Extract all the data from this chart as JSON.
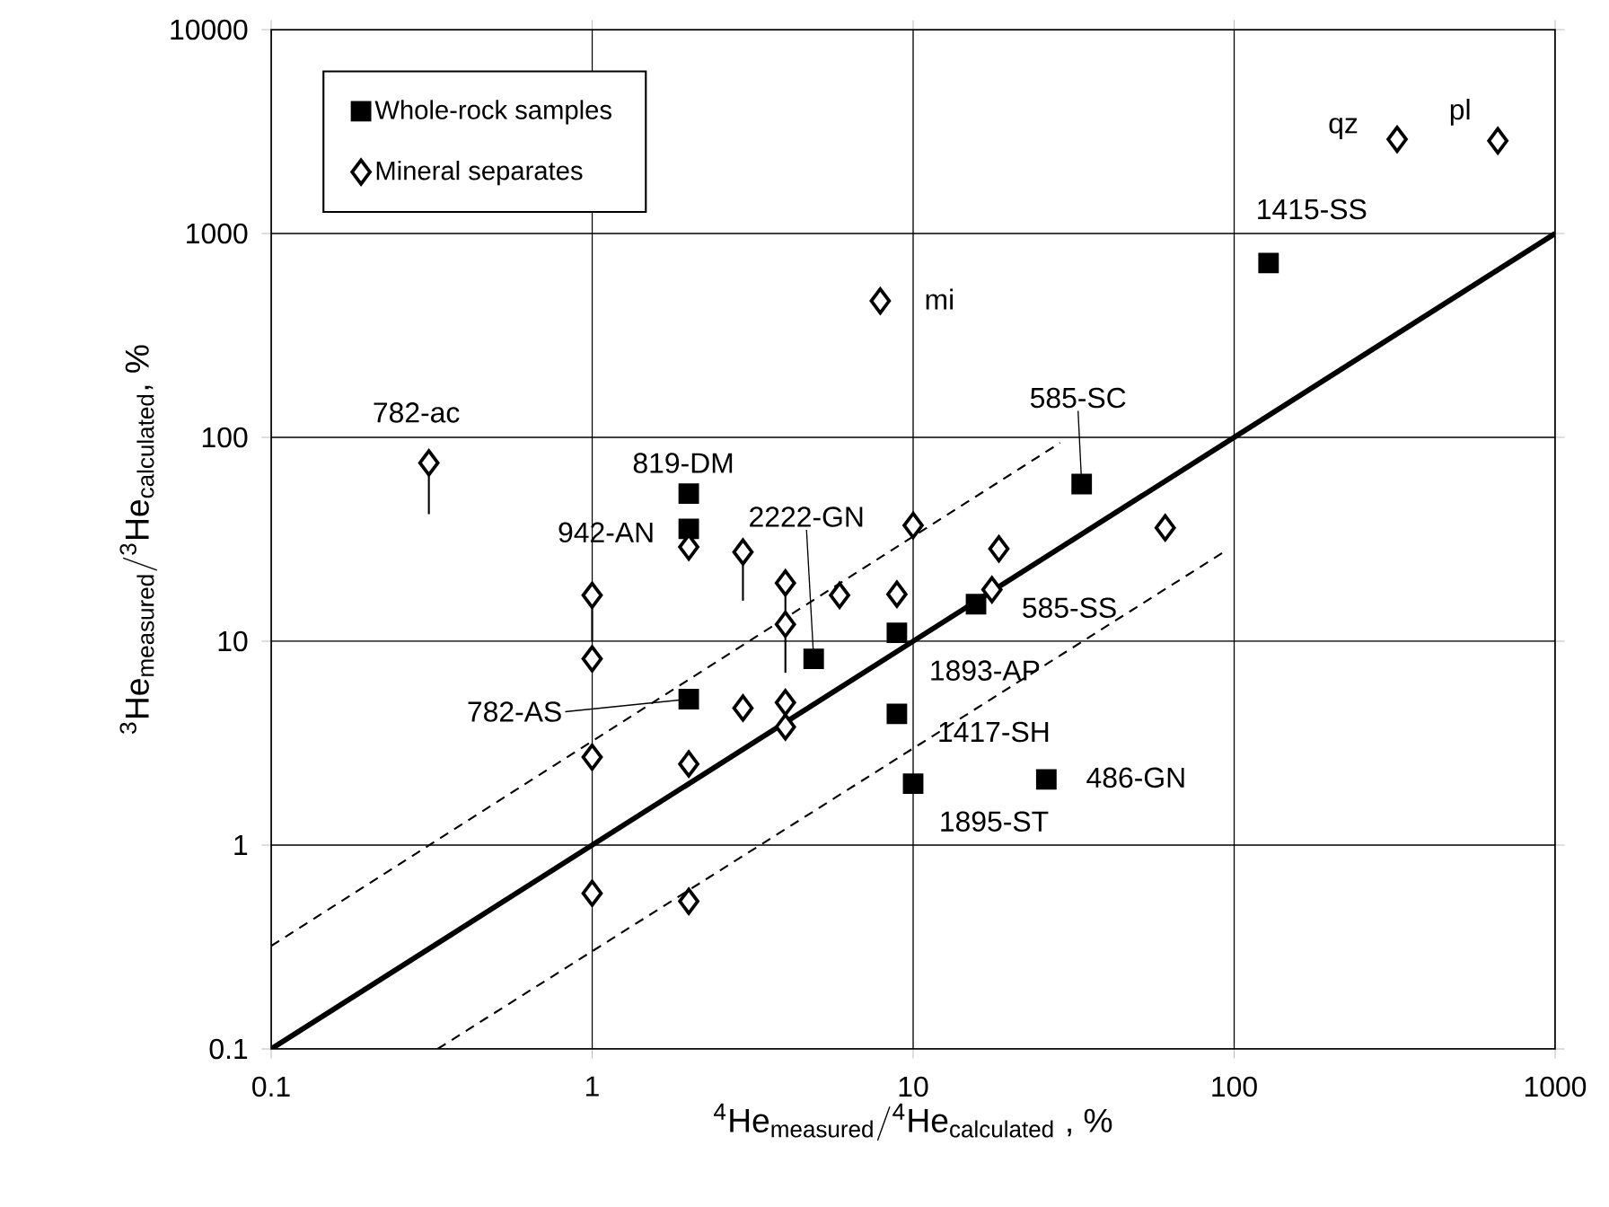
{
  "chart_data": {
    "type": "scatter",
    "xlabel": "{}^{\\text{4}}\\text{He}_{\\text{measured}}/{}^{\\text{4}}\\text{He}_{\\text{calculated}}\\text{ , \\%}",
    "ylabel": "{}^{\\text{3}}\\text{He}_{\\text{measured}}/{}^{\\text{3}}\\text{He}_{\\text{calculated}}\\text{, \\%}",
    "log": "xy",
    "grid": true,
    "legend": "top left",
    "xlim": [
      0.1,
      1000
    ],
    "ylim": [
      0.1,
      10000
    ],
    "xticks": [
      0.1,
      1,
      10,
      100,
      1000
    ],
    "yticks": [
      0.1,
      1,
      10,
      100,
      1000,
      10000
    ],
    "series": [
      {
        "name": "Whole-rock samples",
        "marker": "square",
        "color": "#000000",
        "x": [
          128,
          33.5,
          2.0,
          2.0,
          2.0,
          4.9,
          8.9,
          15.7,
          8.9,
          10,
          26
        ],
        "values": [
          716,
          59,
          53,
          35.6,
          5.2,
          8.2,
          11,
          15.2,
          4.4,
          2.0,
          2.1
        ]
      },
      {
        "name": "Mineral separates",
        "marker": "diamond",
        "color": "#ffffff",
        "x": [
          0.31,
          2.0,
          2.95,
          1,
          1,
          1,
          1,
          2.0,
          2.0,
          2.95,
          4.0,
          4.0,
          4.0,
          4.0,
          5.9,
          8.9,
          10,
          18.5,
          17.6,
          61,
          7.9,
          322,
          663
        ],
        "values": [
          75,
          29,
          27.4,
          16.8,
          8.2,
          2.7,
          0.58,
          2.5,
          0.53,
          4.7,
          5.0,
          3.8,
          19.3,
          12.1,
          16.8,
          17,
          37,
          28.4,
          17.9,
          36,
          467,
          2900,
          2850
        ],
        "errors": [
          [
            42,
            75
          ],
          null,
          [
            15.8,
            27.4
          ],
          [
            10,
            16.8
          ],
          null,
          null,
          null,
          null,
          null,
          null,
          null,
          null,
          [
            11.7,
            19.3
          ],
          [
            7.0,
            12.1
          ],
          null,
          null,
          null,
          null,
          null,
          null,
          null,
          null,
          null
        ]
      },
      {
        "type": "line",
        "color": "#000000",
        "line_style": "solid",
        "x": [
          0.1,
          1000
        ],
        "values": [
          0.1,
          1000
        ]
      },
      {
        "type": "line",
        "color": "#000000",
        "line_style": "dashed",
        "x": [
          0.1,
          28.7
        ],
        "values": [
          0.32,
          94
        ]
      },
      {
        "type": "line",
        "color": "#000000",
        "line_style": "dashed",
        "x": [
          0.33,
          95
        ],
        "values": [
          0.1,
          28
        ]
      }
    ],
    "annotations": [
      {
        "text": "782-ac",
        "x": 0.31,
        "y": 75
      },
      {
        "text": "819-DM",
        "x": 2.0,
        "y": 53
      },
      {
        "text": "942-AN",
        "x": 2.0,
        "y": 35.6
      },
      {
        "text": "2222-GN",
        "x": 4.9,
        "y": 8.2
      },
      {
        "text": "1415-SS",
        "x": 128,
        "y": 716
      },
      {
        "text": "585-SC",
        "x": 33.5,
        "y": 59
      },
      {
        "text": "qz",
        "x": 322,
        "y": 2900
      },
      {
        "text": "pl",
        "x": 663,
        "y": 2850
      },
      {
        "text": "mi",
        "x": 7.9,
        "y": 467
      },
      {
        "text": "585-SS",
        "x": 15.7,
        "y": 15.2
      },
      {
        "text": "1893-AP",
        "x": 8.9,
        "y": 11
      },
      {
        "text": "1417-SH",
        "x": 8.9,
        "y": 4.4
      },
      {
        "text": "1895-ST",
        "x": 10,
        "y": 2.0
      },
      {
        "text": "486-GN",
        "x": 26,
        "y": 2.1
      },
      {
        "text": "782-AS",
        "x": 2.0,
        "y": 5.2
      }
    ]
  }
}
